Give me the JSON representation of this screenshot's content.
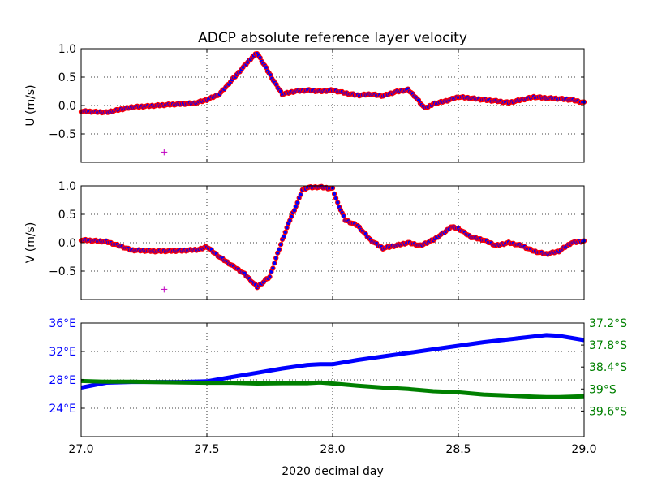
{
  "title": "ADCP absolute reference layer velocity",
  "chart_data": [
    {
      "type": "scatter",
      "panel": "u",
      "ylabel": "U (m/s)",
      "xlim": [
        27.0,
        29.0
      ],
      "ylim": [
        -1.0,
        1.0
      ],
      "yticks": [
        -0.5,
        0.0,
        0.5,
        1.0
      ],
      "ytick_labels": [
        "−0.5",
        "0.0",
        "0.5",
        "1.0"
      ],
      "grid": true,
      "marker_face": "#0000ff",
      "marker_edge": "#ff0000",
      "x": [
        27.0,
        27.1,
        27.2,
        27.3,
        27.4,
        27.45,
        27.5,
        27.55,
        27.6,
        27.65,
        27.68,
        27.7,
        27.73,
        27.77,
        27.8,
        27.85,
        27.9,
        27.95,
        28.0,
        28.05,
        28.1,
        28.15,
        28.2,
        28.25,
        28.3,
        28.33,
        28.36,
        28.38,
        28.4,
        28.45,
        28.5,
        28.55,
        28.6,
        28.65,
        28.7,
        28.75,
        28.8,
        28.85,
        28.9,
        28.95,
        29.0
      ],
      "values": [
        -0.1,
        -0.12,
        -0.03,
        0.0,
        0.03,
        0.04,
        0.1,
        0.2,
        0.45,
        0.7,
        0.85,
        0.92,
        0.7,
        0.4,
        0.2,
        0.25,
        0.27,
        0.25,
        0.27,
        0.22,
        0.18,
        0.2,
        0.17,
        0.24,
        0.28,
        0.15,
        -0.02,
        -0.03,
        0.03,
        0.08,
        0.15,
        0.13,
        0.1,
        0.08,
        0.05,
        0.1,
        0.15,
        0.13,
        0.12,
        0.1,
        0.05
      ],
      "outlier": {
        "x": 27.33,
        "y": -0.82,
        "color": "#c000c0"
      }
    },
    {
      "type": "scatter",
      "panel": "v",
      "ylabel": "V (m/s)",
      "xlim": [
        27.0,
        29.0
      ],
      "ylim": [
        -1.0,
        1.0
      ],
      "yticks": [
        -0.5,
        0.0,
        0.5,
        1.0
      ],
      "ytick_labels": [
        "−0.5",
        "0.0",
        "0.5",
        "1.0"
      ],
      "grid": true,
      "marker_face": "#0000ff",
      "marker_edge": "#ff0000",
      "x": [
        27.0,
        27.1,
        27.15,
        27.2,
        27.3,
        27.4,
        27.47,
        27.5,
        27.55,
        27.6,
        27.65,
        27.7,
        27.75,
        27.8,
        27.83,
        27.86,
        27.88,
        27.9,
        27.95,
        28.0,
        28.02,
        28.05,
        28.1,
        28.15,
        28.2,
        28.25,
        28.3,
        28.35,
        28.4,
        28.45,
        28.47,
        28.5,
        28.55,
        28.6,
        28.65,
        28.7,
        28.75,
        28.8,
        28.85,
        28.9,
        28.95,
        29.0
      ],
      "values": [
        0.05,
        0.02,
        -0.05,
        -0.13,
        -0.15,
        -0.14,
        -0.12,
        -0.07,
        -0.25,
        -0.4,
        -0.55,
        -0.78,
        -0.6,
        0.05,
        0.4,
        0.7,
        0.93,
        0.97,
        0.98,
        0.95,
        0.7,
        0.4,
        0.3,
        0.05,
        -0.1,
        -0.05,
        0.0,
        -0.05,
        0.05,
        0.2,
        0.28,
        0.25,
        0.1,
        0.05,
        -0.05,
        0.0,
        -0.05,
        -0.15,
        -0.2,
        -0.15,
        0.0,
        0.03
      ],
      "outlier": {
        "x": 27.33,
        "y": -0.82,
        "color": "#c000c0"
      }
    },
    {
      "type": "line",
      "panel": "position",
      "xlabel": "2020 decimal day",
      "xlim": [
        27.0,
        29.0
      ],
      "xticks": [
        27.0,
        27.5,
        28.0,
        28.5,
        29.0
      ],
      "xtick_labels": [
        "27.0",
        "27.5",
        "28.0",
        "28.5",
        "29.0"
      ],
      "grid": true,
      "left_axis": {
        "ylim": [
          20.0,
          36.0
        ],
        "yticks": [
          24,
          28,
          32,
          36
        ],
        "ytick_labels": [
          "24°E",
          "28°E",
          "32°E",
          "36°E"
        ],
        "color": "#0000ff"
      },
      "right_axis": {
        "ylim": [
          -40.3,
          -37.2
        ],
        "yticks": [
          -37.2,
          -37.8,
          -38.4,
          -39.0,
          -39.6
        ],
        "ytick_labels": [
          "37.2°S",
          "37.8°S",
          "38.4°S",
          "39°S",
          "39.6°S"
        ],
        "color": "#008000"
      },
      "series": [
        {
          "axis": "left",
          "color": "#0000ff",
          "x": [
            27.0,
            27.1,
            27.2,
            27.3,
            27.4,
            27.5,
            27.6,
            27.7,
            27.8,
            27.9,
            27.95,
            28.0,
            28.1,
            28.2,
            28.3,
            28.4,
            28.5,
            28.6,
            28.7,
            28.8,
            28.85,
            28.9,
            28.95,
            29.0
          ],
          "values": [
            26.9,
            27.6,
            27.7,
            27.7,
            27.7,
            27.8,
            28.4,
            29.0,
            29.6,
            30.1,
            30.2,
            30.2,
            30.8,
            31.3,
            31.8,
            32.3,
            32.8,
            33.3,
            33.7,
            34.1,
            34.3,
            34.2,
            33.9,
            33.6
          ]
        },
        {
          "axis": "right",
          "color": "#008000",
          "x": [
            27.0,
            27.1,
            27.2,
            27.3,
            27.4,
            27.5,
            27.6,
            27.7,
            27.8,
            27.9,
            27.95,
            28.0,
            28.1,
            28.2,
            28.3,
            28.4,
            28.5,
            28.6,
            28.7,
            28.8,
            28.85,
            28.9,
            28.95,
            29.0
          ],
          "values": [
            -38.78,
            -38.8,
            -38.8,
            -38.81,
            -38.82,
            -38.83,
            -38.83,
            -38.85,
            -38.84,
            -38.84,
            -38.82,
            -38.85,
            -38.91,
            -38.96,
            -39.0,
            -39.06,
            -39.09,
            -39.15,
            -39.18,
            -39.21,
            -39.22,
            -39.22,
            -39.21,
            -39.2
          ]
        }
      ]
    }
  ]
}
